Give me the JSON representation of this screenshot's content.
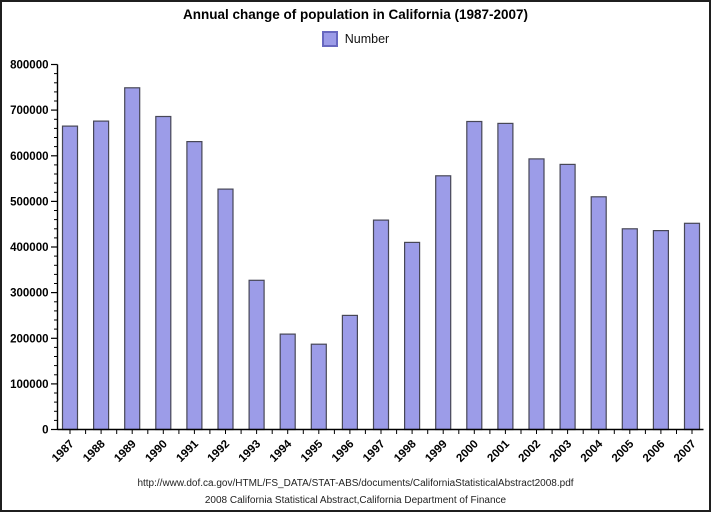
{
  "title": "Annual change of population in California (1987-2007)",
  "legend": {
    "label": "Number"
  },
  "footer": {
    "line1": "http://www.dof.ca.gov/HTML/FS_DATA/STAT-ABS/documents/CaliforniaStatisticalAbstract2008.pdf",
    "line2": "2008 California Statistical Abstract,California Department of Finance"
  },
  "colors": {
    "bar_fill": "#9c9ce8",
    "bar_border": "#474756",
    "legend_swatch_border": "#6868c0",
    "axis": "#000000",
    "text": "#000000"
  },
  "chart_data": {
    "type": "bar",
    "title": "Annual change of population in California (1987-2007)",
    "categories": [
      "1987",
      "1988",
      "1989",
      "1990",
      "1991",
      "1992",
      "1993",
      "1994",
      "1995",
      "1996",
      "1997",
      "1998",
      "1999",
      "2000",
      "2001",
      "2002",
      "2003",
      "2004",
      "2005",
      "2006",
      "2007"
    ],
    "values": [
      665000,
      676000,
      749000,
      686000,
      631000,
      527000,
      327000,
      209000,
      187000,
      250000,
      459000,
      410000,
      556000,
      675000,
      671000,
      593000,
      581000,
      510000,
      440000,
      436000,
      452000
    ],
    "series": [
      {
        "name": "Number",
        "values": [
          665000,
          676000,
          749000,
          686000,
          631000,
          527000,
          327000,
          209000,
          187000,
          250000,
          459000,
          410000,
          556000,
          675000,
          671000,
          593000,
          581000,
          510000,
          440000,
          436000,
          452000
        ]
      }
    ],
    "xlabel": "",
    "ylabel": "",
    "ylim": [
      0,
      800000
    ],
    "ytick_step": 100000,
    "yminor_step": 20000,
    "ytick_labels": [
      "0",
      "100000",
      "200000",
      "300000",
      "400000",
      "500000",
      "600000",
      "700000",
      "800000"
    ],
    "grid": false,
    "legend_entries": [
      "Number"
    ],
    "legend_position": "top-center",
    "annotations": [
      "http://www.dof.ca.gov/HTML/FS_DATA/STAT-ABS/documents/CaliforniaStatisticalAbstract2008.pdf",
      "2008 California Statistical Abstract,California Department of Finance"
    ]
  }
}
